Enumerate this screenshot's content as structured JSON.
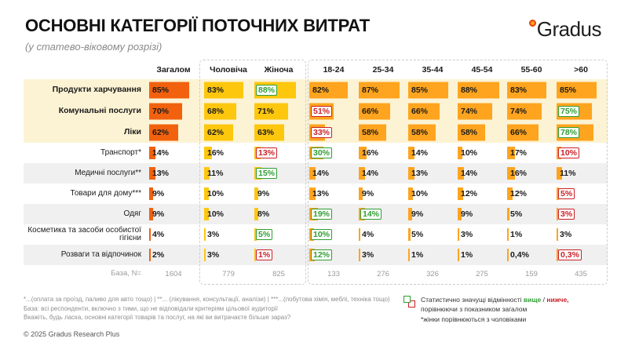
{
  "header": {
    "title": "ОСНОВНІ КАТЕГОРІЇ ПОТОЧНИХ ВИТРАТ",
    "subtitle": "(у статево-віковому розрізі)",
    "logo": "Gradus"
  },
  "colors": {
    "total_bar": "#F2610D",
    "gender_bar": "#FDC70E",
    "age_bar": "#FFA41E",
    "sig_high_green": "#2F9E33",
    "sig_low_red": "#CB2027",
    "top_rows_bg": "#FCF3D4",
    "alt_row_bg": "#F0F0F0"
  },
  "chart_data": {
    "type": "bar",
    "title": "ОСНОВНІ КАТЕГОРІЇ ПОТОЧНИХ ВИТРАТ (у статево-віковому розрізі)",
    "columns": [
      "Загалом",
      "Чоловіча",
      "Жіноча",
      "18-24",
      "25-34",
      "35-44",
      "45-54",
      "55-60",
      ">60"
    ],
    "column_groups": [
      {
        "name": "total",
        "cols": [
          0
        ]
      },
      {
        "name": "gender",
        "cols": [
          1,
          2
        ]
      },
      {
        "name": "age",
        "cols": [
          3,
          4,
          5,
          6,
          7,
          8
        ]
      }
    ],
    "sig_legend": {
      "hi": "статистично значуще вище",
      "lo": "статистично значуще нижче"
    },
    "rows": [
      {
        "label": "Продукти харчування",
        "top": true,
        "values": [
          "85%",
          "83%",
          "88%",
          "82%",
          "87%",
          "85%",
          "88%",
          "83%",
          "85%"
        ],
        "sig": [
          "",
          "",
          "hi",
          "",
          "",
          "",
          "",
          "",
          ""
        ]
      },
      {
        "label": "Комунальні послуги",
        "top": true,
        "values": [
          "70%",
          "68%",
          "71%",
          "51%",
          "66%",
          "66%",
          "74%",
          "74%",
          "75%"
        ],
        "sig": [
          "",
          "",
          "",
          "lo",
          "",
          "",
          "",
          "",
          "hi"
        ]
      },
      {
        "label": "Ліки",
        "top": true,
        "values": [
          "62%",
          "62%",
          "63%",
          "33%",
          "58%",
          "58%",
          "58%",
          "66%",
          "78%"
        ],
        "sig": [
          "",
          "",
          "",
          "lo",
          "",
          "",
          "",
          "",
          "hi"
        ]
      },
      {
        "label": "Транспорт*",
        "top": false,
        "values": [
          "14%",
          "16%",
          "13%",
          "30%",
          "16%",
          "14%",
          "10%",
          "17%",
          "10%"
        ],
        "sig": [
          "",
          "",
          "lo",
          "hi",
          "",
          "",
          "",
          "",
          "lo"
        ]
      },
      {
        "label": "Медичні послуги**",
        "top": false,
        "values": [
          "13%",
          "11%",
          "15%",
          "14%",
          "14%",
          "13%",
          "14%",
          "16%",
          "11%"
        ],
        "sig": [
          "",
          "",
          "hi",
          "",
          "",
          "",
          "",
          "",
          ""
        ]
      },
      {
        "label": "Товари для дому***",
        "top": false,
        "values": [
          "9%",
          "10%",
          "9%",
          "13%",
          "9%",
          "10%",
          "12%",
          "12%",
          "5%"
        ],
        "sig": [
          "",
          "",
          "",
          "",
          "",
          "",
          "",
          "",
          "lo"
        ]
      },
      {
        "label": "Одяг",
        "top": false,
        "values": [
          "9%",
          "10%",
          "8%",
          "19%",
          "14%",
          "9%",
          "9%",
          "5%",
          "3%"
        ],
        "sig": [
          "",
          "",
          "",
          "hi",
          "hi",
          "",
          "",
          "",
          "lo"
        ]
      },
      {
        "label": "Косметика та засоби особистої гігієни",
        "top": false,
        "values": [
          "4%",
          "3%",
          "5%",
          "10%",
          "4%",
          "5%",
          "3%",
          "1%",
          "3%"
        ],
        "sig": [
          "",
          "",
          "hi",
          "hi",
          "",
          "",
          "",
          "",
          ""
        ]
      },
      {
        "label": "Розваги та відпочинок",
        "top": false,
        "values": [
          "2%",
          "3%",
          "1%",
          "12%",
          "3%",
          "1%",
          "1%",
          "0,4%",
          "0,3%"
        ],
        "sig": [
          "",
          "",
          "lo",
          "hi",
          "",
          "",
          "",
          "",
          "lo"
        ]
      }
    ],
    "base_row": {
      "label": "База, N=",
      "values": [
        "1604",
        "779",
        "825",
        "133",
        "276",
        "326",
        "275",
        "159",
        "435"
      ]
    }
  },
  "footer": {
    "footnote1": "*...(оплата за проїзд, паливо для авто тощо) | **... (лікування, консультації, аналізи) | ***...(побутова хімія, меблі, техніка тощо)",
    "footnote2": "База: всі респонденти, включно з тими, що не відповідали критеріям цільової аудиторії",
    "question": "Вкажіть, будь ласка, основні  категорії товарів та послуг, на які ви витрачаєте більше зараз?",
    "copyright": "© 2025 Gradus Research Plus"
  },
  "legend": {
    "text1": "Статистично значущі відмінності ",
    "word_high": "вище",
    "slash": " / ",
    "word_low": "нижче,",
    "line2": "порівнюючи з показником загалом",
    "line3": "*жінки порівнюються з чоловіками"
  }
}
